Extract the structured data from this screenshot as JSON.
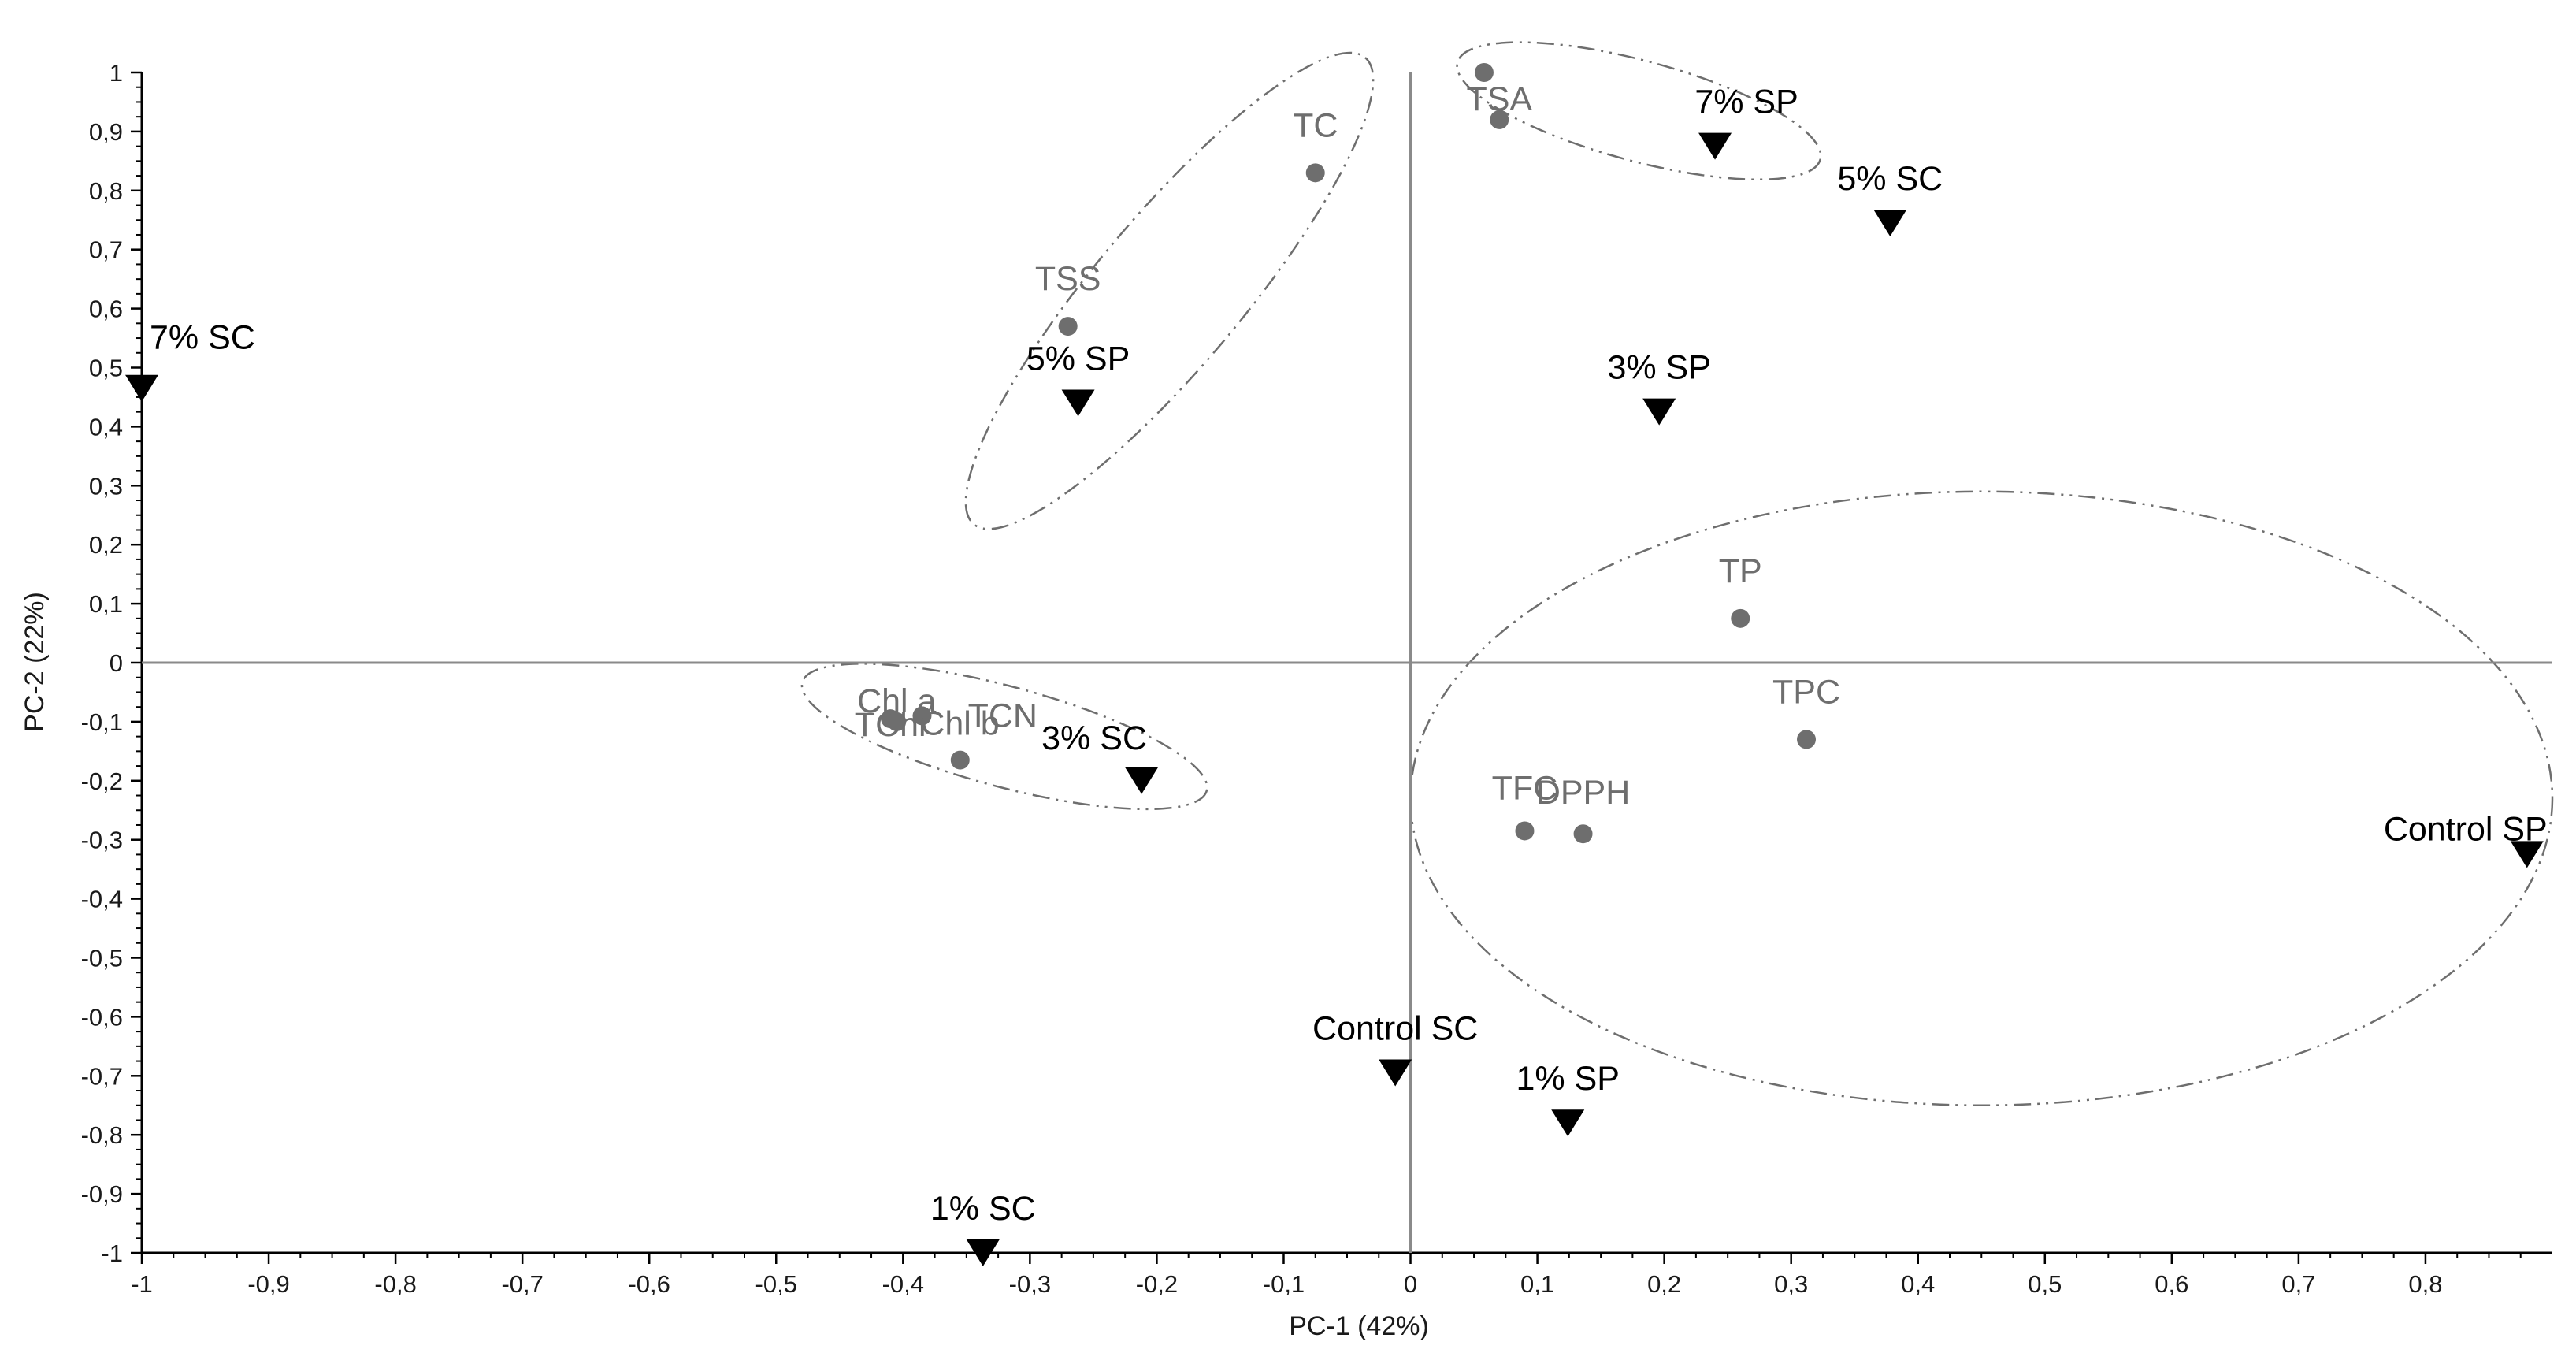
{
  "chart_data": {
    "type": "scatter",
    "xlabel": "PC-1 (42%)",
    "ylabel": "PC-2 (22%)",
    "xlim": [
      -1,
      0.9
    ],
    "ylim": [
      -1,
      1
    ],
    "x_ticks": [
      "-1",
      "-0,9",
      "-0,8",
      "-0,7",
      "-0,6",
      "-0,5",
      "-0,4",
      "-0,3",
      "-0,2",
      "-0,1",
      "0",
      "0,1",
      "0,2",
      "0,3",
      "0,4",
      "0,5",
      "0,6",
      "0,7",
      "0,8"
    ],
    "y_ticks": [
      "1",
      "0,9",
      "0,8",
      "0,7",
      "0,6",
      "0,5",
      "0,4",
      "0,3",
      "0,2",
      "0,1",
      "0",
      "-0,1",
      "-0,2",
      "-0,3",
      "-0,4",
      "-0,5",
      "-0,6",
      "-0,7",
      "-0,8",
      "-0,9",
      "-1"
    ],
    "grid": false,
    "series": [
      {
        "marker": "circle",
        "color": "#6e6e6e",
        "points": [
          {
            "label": "TC",
            "x": -0.075,
            "y": 0.83
          },
          {
            "label": "TSS",
            "x": -0.27,
            "y": 0.57
          },
          {
            "label": "TSA",
            "x": 0.07,
            "y": 0.92
          },
          {
            "label": "",
            "x": 0.058,
            "y": 1.0
          },
          {
            "label": "TChl",
            "x": -0.41,
            "y": -0.095
          },
          {
            "label": "Chl b",
            "x": -0.385,
            "y": -0.09
          },
          {
            "label": "Chl a",
            "x": -0.405,
            "y": -0.1
          },
          {
            "label": "TCN",
            "x": -0.355,
            "y": -0.165
          },
          {
            "label": "TP",
            "x": 0.26,
            "y": 0.075
          },
          {
            "label": "TPC",
            "x": 0.312,
            "y": -0.13
          },
          {
            "label": "TFC",
            "x": 0.09,
            "y": -0.285
          },
          {
            "label": "DPPH",
            "x": 0.136,
            "y": -0.29
          }
        ]
      },
      {
        "marker": "triangle-down",
        "color": "#000000",
        "points": [
          {
            "label": "7% SC",
            "x": -1.0,
            "y": 0.465
          },
          {
            "label": "5% SP",
            "x": -0.262,
            "y": 0.44
          },
          {
            "label": "7% SP",
            "x": 0.24,
            "y": 0.875
          },
          {
            "label": "5% SC",
            "x": 0.378,
            "y": 0.745
          },
          {
            "label": "3% SP",
            "x": 0.196,
            "y": 0.425
          },
          {
            "label": "3% SC",
            "x": -0.212,
            "y": -0.2
          },
          {
            "label": "Control SP",
            "x": 0.88,
            "y": -0.325
          },
          {
            "label": "Control SC",
            "x": -0.012,
            "y": -0.695
          },
          {
            "label": "1% SP",
            "x": 0.124,
            "y": -0.78
          },
          {
            "label": "1% SC",
            "x": -0.337,
            "y": -1.0
          }
        ]
      }
    ],
    "ellipses": [
      {
        "cx": -0.19,
        "cy": 0.63,
        "rx": 0.24,
        "ry": 0.125,
        "rotation_deg": -50
      },
      {
        "cx": 0.18,
        "cy": 0.935,
        "rx": 0.148,
        "ry": 0.085,
        "rotation_deg": 15
      },
      {
        "cx": -0.32,
        "cy": -0.125,
        "rx": 0.165,
        "ry": 0.085,
        "rotation_deg": 15
      },
      {
        "cx": 0.45,
        "cy": -0.23,
        "rx": 0.45,
        "ry": 0.52,
        "rotation_deg": 0
      }
    ]
  }
}
